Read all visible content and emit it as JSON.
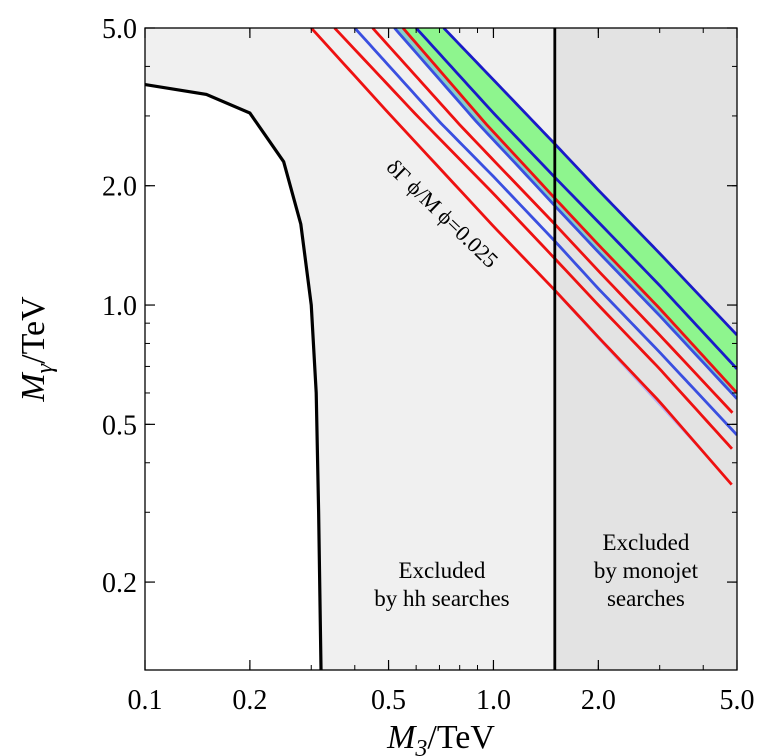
{
  "chart_data": {
    "type": "area",
    "title": "",
    "x_axis": {
      "label_main": "M",
      "label_sub": "3",
      "label_unit": "/TeV",
      "scale": "log",
      "range": [
        0.1,
        5.0
      ],
      "ticks": [
        0.1,
        0.2,
        0.5,
        1.0,
        2.0,
        5.0
      ],
      "tick_labels": [
        "0.1",
        "0.2",
        "0.5",
        "1.0",
        "2.0",
        "5.0"
      ]
    },
    "y_axis": {
      "label_main": "M",
      "label_sub": "γ",
      "label_unit": "/TeV",
      "scale": "log",
      "range": [
        0.12,
        5.0
      ],
      "ticks": [
        0.2,
        0.5,
        1.0,
        2.0,
        5.0
      ],
      "tick_labels": [
        "0.2",
        "0.5",
        "1.0",
        "2.0",
        "5.0"
      ]
    },
    "grid": false,
    "colors": {
      "region_hh": "#f0f0f0",
      "region_monojet": "#e3e3e3",
      "band_blue": "#b8b8f2",
      "band_green": "#8ef58e",
      "band_overlap": "#88cfc6",
      "curve_red": "#ee1111",
      "curve_blue": "#3a4fe0",
      "curve_dark_blue": "#1a1ac8",
      "boundary": "#000000"
    },
    "regions": [
      {
        "label_lines": [
          "Excluded",
          "by hh searches"
        ],
        "x_range": [
          0.1,
          1.5
        ],
        "boundary_curve": "hh_boundary"
      },
      {
        "label_lines": [
          "Excluded",
          "by monojet",
          "searches"
        ],
        "x_range": [
          1.5,
          5.0
        ],
        "boundary_x": 1.5
      }
    ],
    "hh_boundary": [
      [
        0.1,
        3.6
      ],
      [
        0.15,
        3.4
      ],
      [
        0.2,
        3.05
      ],
      [
        0.25,
        2.3
      ],
      [
        0.28,
        1.6
      ],
      [
        0.3,
        1.0
      ],
      [
        0.31,
        0.6
      ],
      [
        0.315,
        0.3
      ],
      [
        0.32,
        0.12
      ]
    ],
    "bands": [
      {
        "fill": "band_blue",
        "lower_curve": "red_1",
        "upper_curve": "red_4"
      },
      {
        "fill": "band_green",
        "lower_curve": "blue_2",
        "upper_curve": "blue_4"
      }
    ],
    "curves": [
      {
        "id": "red_1",
        "color": "curve_red",
        "points": [
          [
            0.3,
            5.0
          ],
          [
            0.5,
            3.05
          ],
          [
            1.0,
            1.58
          ],
          [
            1.5,
            1.09
          ],
          [
            2.0,
            0.83
          ],
          [
            3.0,
            0.57
          ],
          [
            5.0,
            0.34
          ]
        ]
      },
      {
        "id": "red_2",
        "color": "curve_red",
        "points": [
          [
            0.35,
            5.0
          ],
          [
            0.6,
            3.02
          ],
          [
            1.0,
            1.91
          ],
          [
            1.5,
            1.31
          ],
          [
            2.0,
            1.0
          ],
          [
            3.0,
            0.69
          ],
          [
            5.0,
            0.42
          ]
        ]
      },
      {
        "id": "blue_1",
        "color": "curve_blue",
        "points": [
          [
            0.4,
            5.0
          ],
          [
            0.7,
            2.9
          ],
          [
            1.0,
            2.11
          ],
          [
            1.5,
            1.45
          ],
          [
            2.0,
            1.1
          ],
          [
            3.0,
            0.76
          ],
          [
            5.0,
            0.47
          ]
        ]
      },
      {
        "id": "red_3",
        "color": "curve_red",
        "points": [
          [
            0.45,
            5.0
          ],
          [
            0.8,
            2.85
          ],
          [
            1.0,
            2.32
          ],
          [
            1.5,
            1.6
          ],
          [
            2.0,
            1.22
          ],
          [
            3.0,
            0.84
          ],
          [
            5.0,
            0.52
          ]
        ]
      },
      {
        "id": "blue_2",
        "color": "curve_blue",
        "points": [
          [
            0.52,
            5.0
          ],
          [
            0.9,
            2.88
          ],
          [
            1.2,
            2.2
          ],
          [
            1.5,
            1.78
          ],
          [
            2.0,
            1.36
          ],
          [
            3.0,
            0.94
          ],
          [
            5.0,
            0.58
          ]
        ]
      },
      {
        "id": "red_4",
        "color": "curve_red",
        "points": [
          [
            0.55,
            5.0
          ],
          [
            0.95,
            2.87
          ],
          [
            1.2,
            2.3
          ],
          [
            1.5,
            1.86
          ],
          [
            2.0,
            1.42
          ],
          [
            3.0,
            0.98
          ],
          [
            5.0,
            0.6
          ]
        ]
      },
      {
        "id": "blue_3",
        "color": "curve_dark_blue",
        "points": [
          [
            0.6,
            5.0
          ],
          [
            1.0,
            3.05
          ],
          [
            1.5,
            2.1
          ],
          [
            2.0,
            1.62
          ],
          [
            3.0,
            1.12
          ],
          [
            5.0,
            0.69
          ]
        ]
      },
      {
        "id": "blue_4",
        "color": "curve_dark_blue",
        "points": [
          [
            0.72,
            5.0
          ],
          [
            1.0,
            3.7
          ],
          [
            1.5,
            2.55
          ],
          [
            2.0,
            1.95
          ],
          [
            3.0,
            1.35
          ],
          [
            5.0,
            0.84
          ]
        ]
      }
    ],
    "annotations": [
      {
        "text": "δΓ ϕ/M ϕ=0.025",
        "x": 0.69,
        "y": 1.65,
        "angle_deg": 44
      }
    ]
  }
}
